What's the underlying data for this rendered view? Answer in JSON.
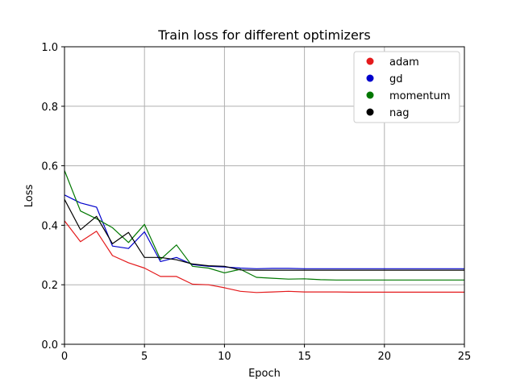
{
  "chart_data": {
    "type": "line",
    "title": "Train loss for different optimizers",
    "xlabel": "Epoch",
    "ylabel": "Loss",
    "xlim": [
      0,
      25
    ],
    "ylim": [
      0,
      1.0
    ],
    "xticks": [
      0,
      5,
      10,
      15,
      20,
      25
    ],
    "xtick_labels": [
      "0",
      "5",
      "10",
      "15",
      "20",
      "25"
    ],
    "yticks": [
      0,
      0.2,
      0.4,
      0.6,
      0.8,
      1.0
    ],
    "ytick_labels": [
      "0.0",
      "0.2",
      "0.4",
      "0.6",
      "0.8",
      "1.0"
    ],
    "grid": true,
    "legend_position": "top-right",
    "x": [
      0,
      1,
      2,
      3,
      4,
      5,
      6,
      7,
      8,
      9,
      10,
      11,
      12,
      13,
      14,
      15,
      16,
      17,
      18,
      19,
      20,
      21,
      22,
      23,
      24,
      25
    ],
    "series": [
      {
        "name": "adam",
        "color": "#e41a1c",
        "values": [
          0.415,
          0.345,
          0.38,
          0.298,
          0.274,
          0.256,
          0.228,
          0.228,
          0.202,
          0.2,
          0.19,
          0.178,
          0.174,
          0.176,
          0.178,
          0.176,
          0.176,
          0.176,
          0.175,
          0.175,
          0.175,
          0.175,
          0.175,
          0.175,
          0.175,
          0.175
        ]
      },
      {
        "name": "gd",
        "color": "#0000cc",
        "values": [
          0.502,
          0.475,
          0.461,
          0.33,
          0.322,
          0.378,
          0.278,
          0.292,
          0.268,
          0.262,
          0.26,
          0.256,
          0.254,
          0.255,
          0.255,
          0.254,
          0.254,
          0.254,
          0.254,
          0.254,
          0.254,
          0.254,
          0.254,
          0.254,
          0.254,
          0.254
        ]
      },
      {
        "name": "momentum",
        "color": "#007700",
        "values": [
          0.584,
          0.448,
          0.422,
          0.392,
          0.342,
          0.403,
          0.285,
          0.334,
          0.262,
          0.256,
          0.24,
          0.252,
          0.225,
          0.222,
          0.219,
          0.22,
          0.217,
          0.216,
          0.216,
          0.216,
          0.216,
          0.216,
          0.216,
          0.216,
          0.216,
          0.216
        ]
      },
      {
        "name": "nag",
        "color": "#000000",
        "values": [
          0.487,
          0.385,
          0.43,
          0.338,
          0.376,
          0.292,
          0.292,
          0.284,
          0.27,
          0.264,
          0.262,
          0.25,
          0.249,
          0.249,
          0.249,
          0.249,
          0.249,
          0.249,
          0.249,
          0.249,
          0.249,
          0.249,
          0.249,
          0.249,
          0.249,
          0.249
        ]
      }
    ]
  }
}
